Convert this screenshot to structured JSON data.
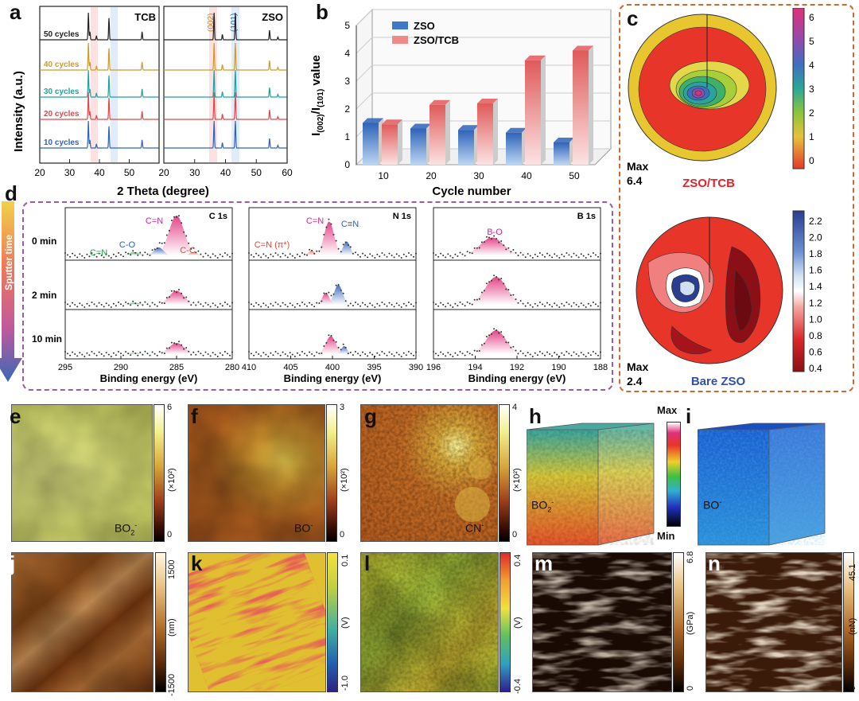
{
  "panel_letters": {
    "a": "a",
    "b": "b",
    "c": "c",
    "d": "d",
    "e": "e",
    "f": "f",
    "g": "g",
    "h": "h",
    "i": "i",
    "j": "j",
    "k": "k",
    "l": "l",
    "m": "m",
    "n": "n"
  },
  "chart_data": [
    {
      "panel": "a",
      "type": "line",
      "title_left": "TCB",
      "title_right": "ZSO",
      "xlabel": "2 Theta (degree)",
      "ylabel": "Intensity (a.u.)",
      "left_xticks": [
        20,
        30,
        40,
        50
      ],
      "right_xticks": [
        20,
        30,
        40,
        50,
        60
      ],
      "xlim_left": [
        20,
        60
      ],
      "xlim_right": [
        20,
        60
      ],
      "peak_labels": [
        "(002)",
        "(101)"
      ],
      "peak_positions": [
        36.3,
        43.2
      ],
      "series": [
        {
          "name": "50 cycles",
          "color": "#222222"
        },
        {
          "name": "40 cycles",
          "color": "#d09a2a"
        },
        {
          "name": "30 cycles",
          "color": "#1aa3a3"
        },
        {
          "name": "20 cycles",
          "color": "#e04848"
        },
        {
          "name": "10 cycles",
          "color": "#2f63b8"
        }
      ]
    },
    {
      "panel": "b",
      "type": "bar",
      "categories": [
        "10",
        "20",
        "30",
        "40",
        "50"
      ],
      "series": [
        {
          "name": "ZSO",
          "values": [
            1.5,
            1.3,
            1.25,
            1.15,
            0.8
          ]
        },
        {
          "name": "ZSO/TCB",
          "values": [
            1.45,
            2.15,
            2.2,
            3.75,
            4.1
          ]
        }
      ],
      "xlabel": "Cycle number",
      "ylabel_main": "I",
      "ylabel_sub1": "(002)",
      "ylabel_mid": "/I",
      "ylabel_sub2": "(101)",
      "ylabel_end": " value",
      "yticks": [
        0,
        1,
        2,
        3,
        4,
        5
      ],
      "ylim": [
        0,
        5
      ]
    },
    {
      "panel": "c",
      "type": "heatmap",
      "top": {
        "label": "ZSO/TCB",
        "max_label": "Max",
        "max_value": "6.4",
        "ticks": [
          "6",
          "5",
          "4",
          "3",
          "2",
          "1",
          "0"
        ]
      },
      "bottom": {
        "label": "Bare ZSO",
        "max_label": "Max",
        "max_value": "2.4",
        "ticks": [
          "2.2",
          "2.0",
          "1.8",
          "1.6",
          "1.4",
          "1.2",
          "1.0",
          "0.8",
          "0.6",
          "0.4"
        ]
      }
    },
    {
      "panel": "d",
      "type": "scatter",
      "side_label": "Sputter time",
      "time_labels": [
        "0 min",
        "2 min",
        "10 min"
      ],
      "xlabel": "Binding energy (eV)",
      "spectra": [
        {
          "title": "C 1s",
          "xticks": [
            295,
            290,
            285,
            280
          ],
          "xlim": [
            295,
            280
          ],
          "peaks": [
            "C=N",
            "C-O",
            "C=N",
            "C-C"
          ]
        },
        {
          "title": "N 1s",
          "xticks": [
            410,
            405,
            400,
            395,
            390
          ],
          "xlim": [
            410,
            390
          ],
          "peaks": [
            "C=N",
            "C≡N",
            "C=N (π*)"
          ]
        },
        {
          "title": "B 1s",
          "xticks": [
            196,
            194,
            192,
            190,
            188
          ],
          "xlim": [
            196,
            188
          ],
          "peaks": [
            "B-O"
          ]
        }
      ]
    },
    {
      "panel": "e-g",
      "type": "heatmap",
      "maps": [
        {
          "label_main": "BO",
          "label_sub": "2",
          "label_sup": "-",
          "cb_top": "6",
          "cb_bottom": "0",
          "unit": "(×10²)"
        },
        {
          "label_main": "BO",
          "label_sub": "",
          "label_sup": "-",
          "cb_top": "3",
          "cb_bottom": "0",
          "unit": "(×10²)"
        },
        {
          "label_main": "CN",
          "label_sub": "",
          "label_sup": "-",
          "cb_top": "4",
          "cb_bottom": "0",
          "unit": "(×10²)"
        }
      ]
    },
    {
      "panel": "h-i",
      "type": "heatmap",
      "cb_max": "Max",
      "cb_min": "Min",
      "cubes": [
        {
          "label_main": "BO",
          "label_sub": "2",
          "label_sup": "-"
        },
        {
          "label_main": "BO",
          "label_sub": "",
          "label_sup": "-"
        }
      ]
    },
    {
      "panel": "j-n",
      "type": "heatmap",
      "maps": [
        {
          "cb_top": "1500",
          "cb_bottom": "-1500",
          "unit": "(nm)"
        },
        {
          "cb_top": "0.1",
          "cb_bottom": "-1.0",
          "unit": "(V)"
        },
        {
          "cb_top": "0.4",
          "cb_bottom": "-0.4",
          "unit": "(V)"
        },
        {
          "cb_top": "6.8",
          "cb_bottom": "0",
          "unit": "(GPa)"
        },
        {
          "cb_top": "45.1",
          "cb_bottom": "0",
          "unit": "(nN)"
        }
      ]
    }
  ]
}
